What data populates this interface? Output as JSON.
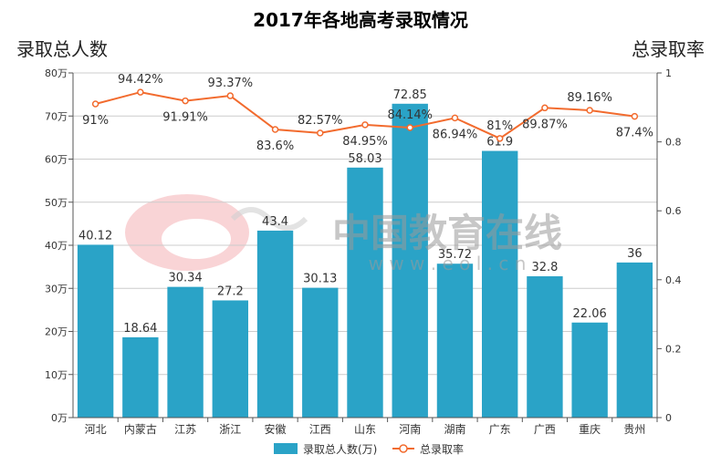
{
  "chart_data": {
    "type": "bar",
    "title": "2017年各地高考录取情况",
    "ylabel_left": "录取总人数",
    "ylabel_right": "总录取率",
    "categories": [
      "河北",
      "内蒙古",
      "江苏",
      "浙江",
      "安徽",
      "江西",
      "山东",
      "河南",
      "湖南",
      "广东",
      "广西",
      "重庆",
      "贵州"
    ],
    "series": [
      {
        "name": "录取总人数(万)",
        "type": "bar",
        "axis": "left",
        "values": [
          40.12,
          18.64,
          30.34,
          27.2,
          43.4,
          30.13,
          58.03,
          72.85,
          35.72,
          61.9,
          32.8,
          22.06,
          36
        ],
        "labels": [
          "40.12",
          "18.64",
          "30.34",
          "27.2",
          "43.4",
          "30.13",
          "58.03",
          "72.85",
          "35.72",
          "61.9",
          "32.8",
          "22.06",
          "36"
        ]
      },
      {
        "name": "总录取率",
        "type": "line",
        "axis": "right",
        "values": [
          0.91,
          0.9442,
          0.9191,
          0.9337,
          0.836,
          0.8257,
          0.8495,
          0.8414,
          0.8694,
          0.81,
          0.8987,
          0.8916,
          0.874
        ],
        "labels": [
          "91%",
          "94.42%",
          "91.91%",
          "93.37%",
          "83.6%",
          "82.57%",
          "84.95%",
          "84.14%",
          "86.94%",
          "81%",
          "89.87%",
          "89.16%",
          "87.4%"
        ]
      }
    ],
    "ylim_left": [
      0,
      80
    ],
    "yticks_left": [
      "0万",
      "10万",
      "20万",
      "30万",
      "40万",
      "50万",
      "60万",
      "70万",
      "80万"
    ],
    "ylim_right": [
      0,
      1
    ],
    "yticks_right": [
      "0",
      "0.2",
      "0.4",
      "0.6",
      "0.8",
      "1"
    ],
    "grid": true,
    "legend_position": "bottom",
    "colors": {
      "bar": "#2aa3c7",
      "line": "#f26b2e",
      "grid": "#cccccc"
    },
    "watermark": {
      "text": "中国教育在线",
      "url": "w w w . e o l . c n"
    }
  }
}
